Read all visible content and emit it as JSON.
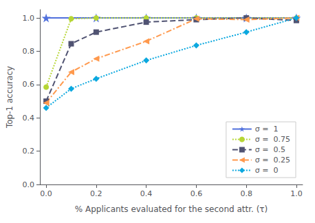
{
  "chart_data": {
    "type": "line",
    "x_label": "% Applicants evaluated for the second attr. (τ)",
    "y_label": "Top-1 accuracy",
    "xlim": [
      -0.025,
      1.025
    ],
    "ylim": [
      0.0,
      1.05
    ],
    "xticks": [
      {
        "value": 0.0,
        "label": "0.0"
      },
      0.2,
      0.4,
      0.6,
      0.8,
      {
        "value": 1.0,
        "label": "1.0"
      }
    ],
    "yticks": [
      {
        "value": 0.0,
        "label": "0.0"
      },
      0.2,
      0.4,
      0.6,
      0.8,
      {
        "value": 1.0,
        "label": "1.0"
      }
    ],
    "grid": false,
    "legend": "lower right",
    "series": [
      {
        "name": "σ =  1",
        "marker": "star",
        "line_style": "solid",
        "x": [
          0.0,
          0.2,
          0.4,
          0.6,
          0.8,
          1.0
        ],
        "values": [
          1.0,
          1.0,
          1.0,
          1.0,
          1.0,
          1.0
        ]
      },
      {
        "name": "σ =  0.75",
        "marker": "circle",
        "line_style": "dotted",
        "x": [
          0.0,
          0.1,
          0.2,
          0.4,
          0.6,
          0.8,
          1.0
        ],
        "values": [
          0.585,
          0.995,
          1.0,
          1.0,
          1.0,
          1.0,
          1.0
        ]
      },
      {
        "name": "σ =  0.5",
        "marker": "square",
        "line_style": "dashed",
        "x": [
          0.0,
          0.1,
          0.2,
          0.4,
          0.6,
          0.8,
          1.0
        ],
        "values": [
          0.5,
          0.845,
          0.915,
          0.975,
          0.99,
          1.0,
          0.985
        ]
      },
      {
        "name": "σ =  0.25",
        "marker": "triangle-left",
        "line_style": "dashdot",
        "x": [
          0.0,
          0.1,
          0.2,
          0.4,
          0.6,
          0.8,
          1.0
        ],
        "values": [
          0.49,
          0.675,
          0.755,
          0.86,
          0.995,
          0.99,
          1.0
        ]
      },
      {
        "name": "σ =  0",
        "marker": "diamond",
        "line_style": "dotted",
        "x": [
          0.0,
          0.1,
          0.2,
          0.4,
          0.6,
          0.8,
          1.0
        ],
        "values": [
          0.46,
          0.575,
          0.635,
          0.745,
          0.835,
          0.915,
          1.0
        ]
      }
    ]
  }
}
